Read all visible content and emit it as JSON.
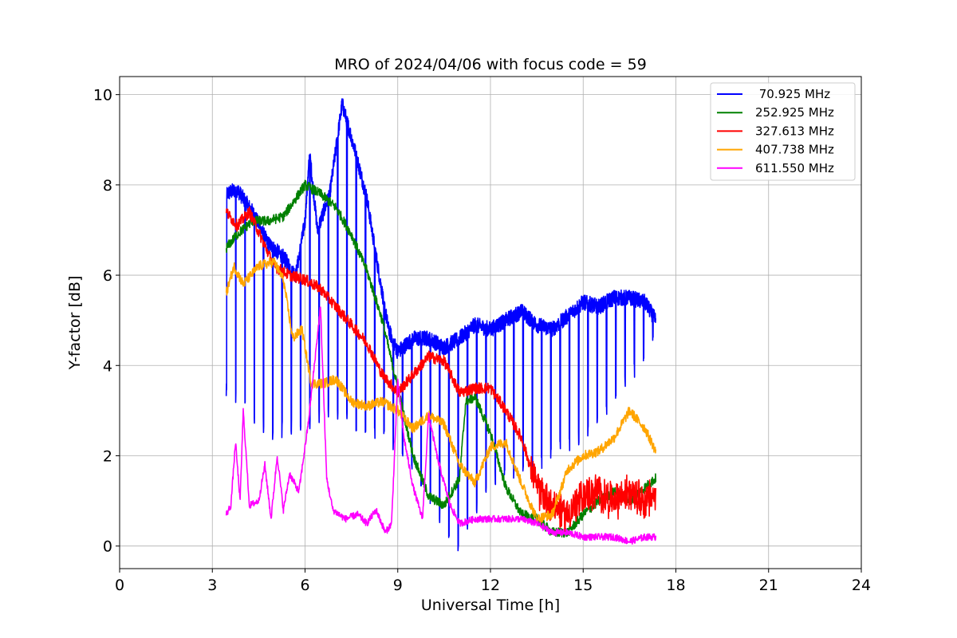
{
  "chart_data": {
    "type": "line",
    "title": "MRO of 2024/04/06 with focus code = 59",
    "xlabel": "Universal Time [h]",
    "ylabel": "Y-factor [dB]",
    "xlim": [
      0,
      24
    ],
    "ylim": [
      -0.5,
      10.4
    ],
    "xticks": [
      "0",
      "3",
      "6",
      "9",
      "12",
      "15",
      "18",
      "21",
      "24"
    ],
    "yticks": [
      "0",
      "2",
      "4",
      "6",
      "8",
      "10"
    ],
    "grid": true,
    "legend_position": "top-right",
    "series": [
      {
        "name": " 70.925 MHz",
        "color": "#0000ff",
        "style": "periodic_dips",
        "dip_period_h": 0.3,
        "dip_start_h": 3.45,
        "envelope": [
          [
            3.45,
            7.8
          ],
          [
            3.8,
            7.9
          ],
          [
            4.3,
            7.4
          ],
          [
            4.8,
            6.7
          ],
          [
            5.3,
            6.4
          ],
          [
            5.7,
            6.0
          ],
          [
            6.0,
            7.2
          ],
          [
            6.15,
            8.7
          ],
          [
            6.4,
            7.0
          ],
          [
            6.8,
            7.8
          ],
          [
            7.2,
            9.8
          ],
          [
            7.6,
            8.8
          ],
          [
            8.0,
            7.7
          ],
          [
            8.4,
            6.0
          ],
          [
            8.7,
            4.8
          ],
          [
            9.0,
            4.3
          ],
          [
            9.5,
            4.6
          ],
          [
            10.0,
            4.6
          ],
          [
            10.5,
            4.4
          ],
          [
            11.0,
            4.6
          ],
          [
            11.5,
            4.9
          ],
          [
            12.0,
            4.8
          ],
          [
            12.5,
            5.0
          ],
          [
            13.0,
            5.2
          ],
          [
            13.5,
            4.9
          ],
          [
            14.0,
            4.8
          ],
          [
            14.5,
            5.1
          ],
          [
            15.0,
            5.4
          ],
          [
            15.5,
            5.3
          ],
          [
            16.0,
            5.5
          ],
          [
            16.5,
            5.5
          ],
          [
            17.0,
            5.4
          ],
          [
            17.35,
            5.0
          ]
        ],
        "dip_levels": [
          [
            3.45,
            3.4
          ],
          [
            5.0,
            2.5
          ],
          [
            7.0,
            3.0
          ],
          [
            9.0,
            2.2
          ],
          [
            11.0,
            0.0
          ],
          [
            12.0,
            1.5
          ],
          [
            14.0,
            2.0
          ],
          [
            15.5,
            2.7
          ],
          [
            17.35,
            4.6
          ]
        ]
      },
      {
        "name": "252.925 MHz",
        "color": "#008000",
        "points": [
          [
            3.45,
            6.6
          ],
          [
            3.8,
            6.9
          ],
          [
            4.3,
            7.2
          ],
          [
            4.8,
            7.2
          ],
          [
            5.3,
            7.3
          ],
          [
            5.6,
            7.6
          ],
          [
            6.0,
            8.0
          ],
          [
            6.5,
            7.8
          ],
          [
            7.0,
            7.5
          ],
          [
            7.5,
            6.9
          ],
          [
            8.0,
            6.1
          ],
          [
            8.5,
            5.0
          ],
          [
            9.0,
            3.5
          ],
          [
            9.5,
            2.0
          ],
          [
            10.0,
            1.1
          ],
          [
            10.5,
            0.9
          ],
          [
            11.0,
            1.5
          ],
          [
            11.2,
            3.2
          ],
          [
            11.5,
            3.3
          ],
          [
            12.0,
            2.5
          ],
          [
            12.5,
            1.3
          ],
          [
            13.0,
            0.7
          ],
          [
            13.5,
            0.6
          ],
          [
            14.0,
            0.3
          ],
          [
            14.5,
            0.3
          ],
          [
            15.0,
            0.7
          ],
          [
            15.5,
            1.0
          ],
          [
            16.0,
            1.2
          ],
          [
            16.5,
            1.0
          ],
          [
            17.0,
            1.3
          ],
          [
            17.35,
            1.5
          ]
        ]
      },
      {
        "name": "327.613 MHz",
        "color": "#ff0000",
        "points": [
          [
            3.45,
            7.4
          ],
          [
            3.8,
            7.1
          ],
          [
            4.2,
            7.4
          ],
          [
            4.6,
            6.8
          ],
          [
            5.0,
            6.2
          ],
          [
            5.5,
            6.0
          ],
          [
            6.0,
            5.9
          ],
          [
            6.5,
            5.7
          ],
          [
            7.0,
            5.3
          ],
          [
            7.5,
            4.9
          ],
          [
            8.0,
            4.5
          ],
          [
            8.5,
            3.8
          ],
          [
            9.0,
            3.4
          ],
          [
            9.5,
            3.8
          ],
          [
            10.0,
            4.2
          ],
          [
            10.5,
            4.1
          ],
          [
            11.0,
            3.4
          ],
          [
            11.5,
            3.5
          ],
          [
            12.0,
            3.5
          ],
          [
            12.5,
            3.0
          ],
          [
            13.0,
            2.4
          ],
          [
            13.5,
            1.3
          ],
          [
            14.0,
            0.9
          ],
          [
            14.5,
            0.7
          ],
          [
            15.0,
            1.1
          ],
          [
            15.5,
            1.2
          ],
          [
            16.0,
            1.0
          ],
          [
            16.5,
            1.2
          ],
          [
            17.0,
            1.0
          ],
          [
            17.35,
            1.1
          ]
        ]
      },
      {
        "name": "407.738 MHz",
        "color": "#ffa500",
        "points": [
          [
            3.45,
            5.6
          ],
          [
            3.7,
            6.2
          ],
          [
            4.0,
            5.8
          ],
          [
            4.5,
            6.2
          ],
          [
            5.0,
            6.3
          ],
          [
            5.3,
            5.9
          ],
          [
            5.6,
            4.6
          ],
          [
            5.9,
            4.8
          ],
          [
            6.2,
            3.6
          ],
          [
            6.6,
            3.6
          ],
          [
            7.0,
            3.7
          ],
          [
            7.5,
            3.2
          ],
          [
            8.0,
            3.1
          ],
          [
            8.5,
            3.2
          ],
          [
            9.0,
            3.0
          ],
          [
            9.5,
            2.6
          ],
          [
            10.0,
            2.9
          ],
          [
            10.5,
            2.7
          ],
          [
            11.0,
            1.8
          ],
          [
            11.5,
            1.4
          ],
          [
            12.0,
            2.2
          ],
          [
            12.5,
            2.3
          ],
          [
            13.0,
            1.4
          ],
          [
            13.5,
            0.6
          ],
          [
            14.0,
            0.7
          ],
          [
            14.5,
            1.7
          ],
          [
            15.0,
            2.0
          ],
          [
            15.5,
            2.1
          ],
          [
            16.0,
            2.4
          ],
          [
            16.5,
            3.0
          ],
          [
            17.0,
            2.6
          ],
          [
            17.35,
            2.1
          ]
        ]
      },
      {
        "name": "611.550 MHz",
        "color": "#ff00ff",
        "points": [
          [
            3.45,
            0.7
          ],
          [
            3.6,
            0.9
          ],
          [
            3.75,
            2.3
          ],
          [
            3.9,
            1.0
          ],
          [
            4.0,
            3.0
          ],
          [
            4.2,
            0.9
          ],
          [
            4.5,
            1.0
          ],
          [
            4.7,
            1.8
          ],
          [
            4.9,
            0.6
          ],
          [
            5.1,
            2.0
          ],
          [
            5.3,
            0.8
          ],
          [
            5.5,
            1.6
          ],
          [
            5.8,
            1.2
          ],
          [
            6.1,
            2.7
          ],
          [
            6.3,
            4.0
          ],
          [
            6.5,
            5.3
          ],
          [
            6.7,
            1.5
          ],
          [
            6.9,
            0.8
          ],
          [
            7.3,
            0.6
          ],
          [
            7.7,
            0.7
          ],
          [
            8.0,
            0.5
          ],
          [
            8.3,
            0.8
          ],
          [
            8.6,
            0.3
          ],
          [
            8.8,
            0.5
          ],
          [
            9.0,
            3.7
          ],
          [
            9.2,
            2.4
          ],
          [
            9.5,
            1.3
          ],
          [
            9.8,
            0.6
          ],
          [
            10.0,
            2.9
          ],
          [
            10.3,
            1.9
          ],
          [
            10.7,
            0.9
          ],
          [
            11.0,
            0.5
          ],
          [
            11.5,
            0.6
          ],
          [
            12.0,
            0.6
          ],
          [
            12.5,
            0.6
          ],
          [
            13.0,
            0.6
          ],
          [
            13.5,
            0.5
          ],
          [
            14.0,
            0.3
          ],
          [
            14.5,
            0.3
          ],
          [
            15.0,
            0.2
          ],
          [
            15.5,
            0.2
          ],
          [
            16.0,
            0.2
          ],
          [
            16.5,
            0.1
          ],
          [
            17.0,
            0.2
          ],
          [
            17.35,
            0.2
          ]
        ]
      }
    ]
  }
}
